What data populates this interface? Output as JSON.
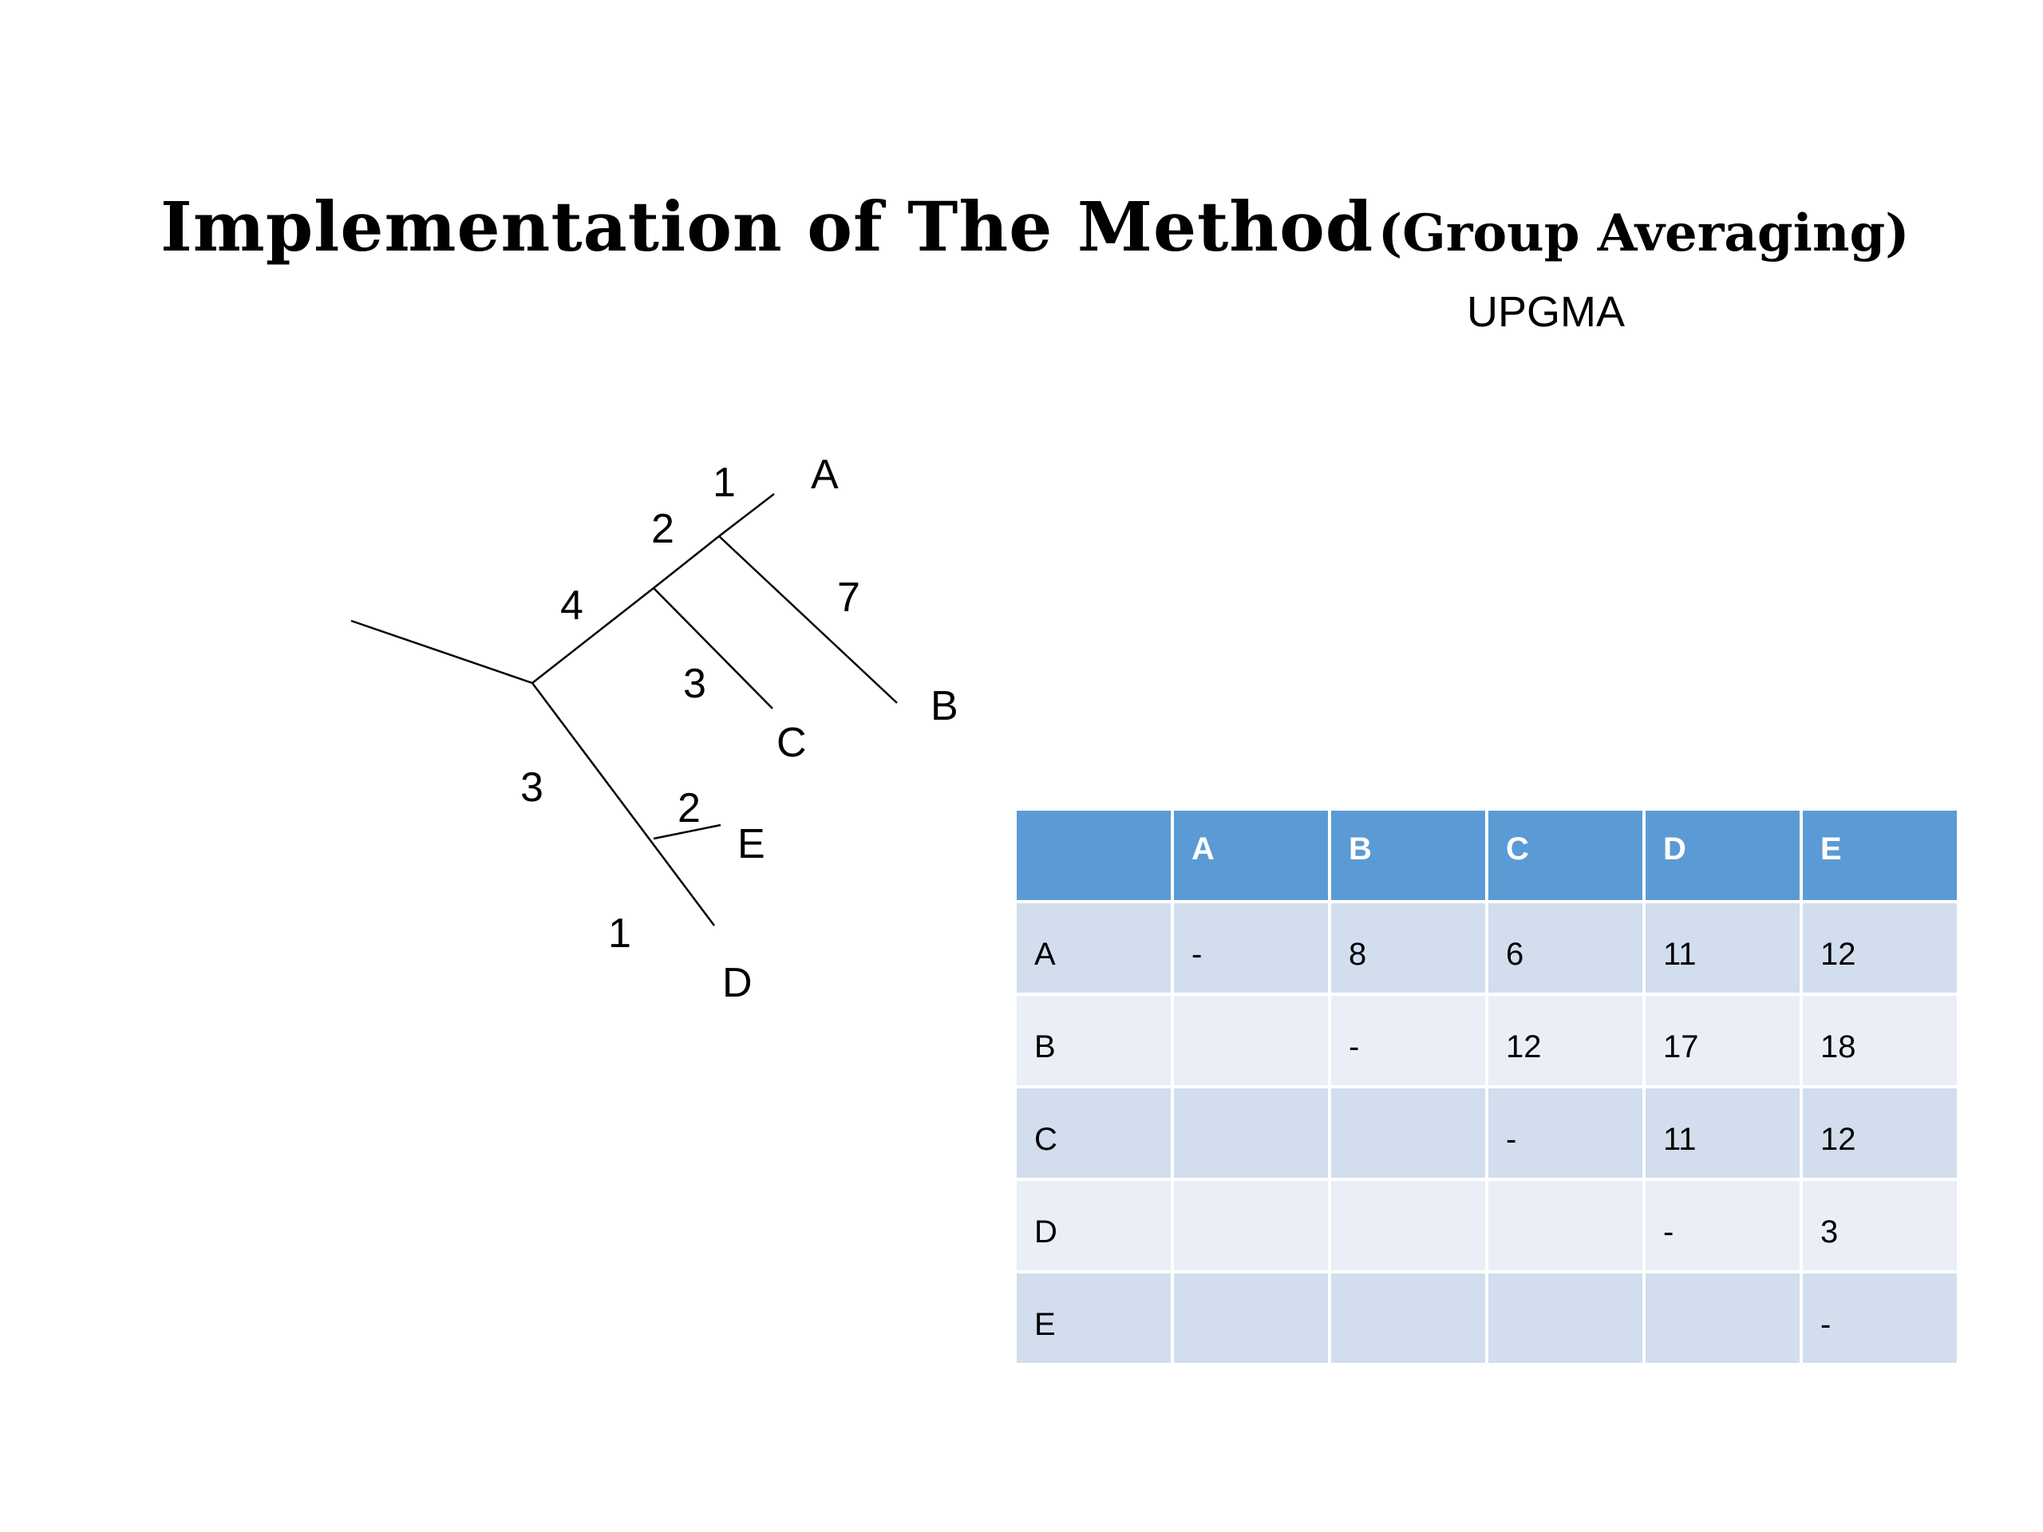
{
  "title": {
    "main": "Implementation of The Method",
    "sub": "(Group Averaging)"
  },
  "subtitle": "UPGMA",
  "tree": {
    "leaf_labels": [
      "A",
      "B",
      "C",
      "D",
      "E"
    ],
    "branch_labels": [
      "1",
      "2",
      "7",
      "4",
      "3",
      "3",
      "2",
      "1"
    ]
  },
  "table": {
    "header": [
      "",
      "A",
      "B",
      "C",
      "D",
      "E"
    ],
    "rows": [
      [
        "A",
        "-",
        "8",
        "6",
        "11",
        "12"
      ],
      [
        "B",
        "",
        "-",
        "12",
        "17",
        "18"
      ],
      [
        "C",
        "",
        "",
        "-",
        "11",
        "12"
      ],
      [
        "D",
        "",
        "",
        "",
        "-",
        "3"
      ],
      [
        "E",
        "",
        "",
        "",
        "",
        "-"
      ]
    ]
  }
}
